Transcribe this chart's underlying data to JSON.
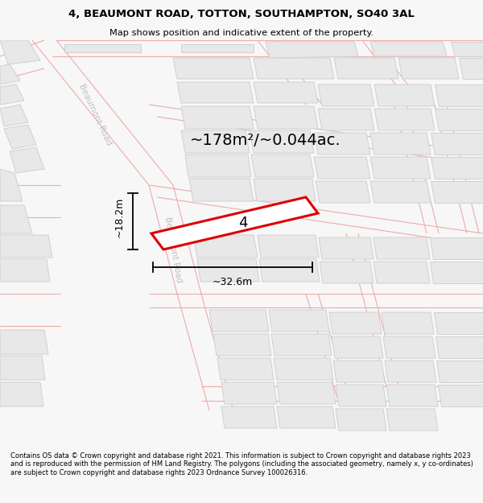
{
  "title_line1": "4, BEAUMONT ROAD, TOTTON, SOUTHAMPTON, SO40 3AL",
  "title_line2": "Map shows position and indicative extent of the property.",
  "area_label": "~178m²/~0.044ac.",
  "property_number": "4",
  "dim_width": "~32.6m",
  "dim_height": "~18.2m",
  "footer_text": "Contains OS data © Crown copyright and database right 2021. This information is subject to Crown copyright and database rights 2023 and is reproduced with the permission of HM Land Registry. The polygons (including the associated geometry, namely x, y co-ordinates) are subject to Crown copyright and database rights 2023 Ordnance Survey 100026316.",
  "bg_color": "#f7f7f7",
  "map_bg": "#f8f8f8",
  "road_color": "#f0aaaa",
  "building_fill": "#e8e8e8",
  "building_edge": "#d0d0d0",
  "highlight_fill": "#ffffff",
  "highlight_edge": "#dd0000",
  "road_label_color": "#c0c0c0",
  "dim_color": "#000000",
  "text_color": "#000000",
  "road_lw": 0.8,
  "building_lw": 0.7
}
